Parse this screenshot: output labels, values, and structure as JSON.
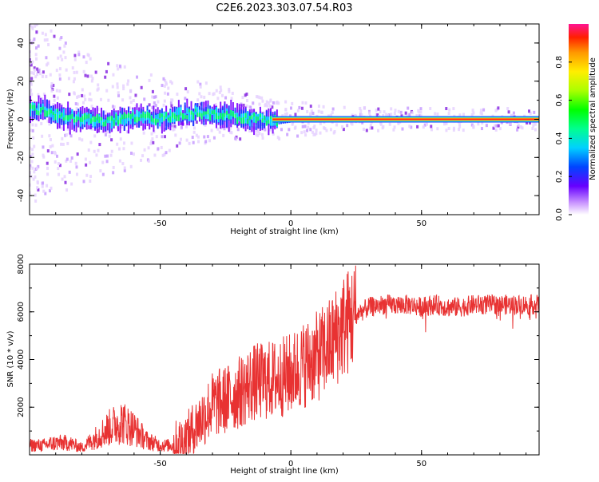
{
  "title": "C2E6.2023.303.07.54.R03",
  "chart_data": [
    {
      "type": "heatmap",
      "xlabel": "Height of straight line (km)",
      "ylabel": "Frequency (Hz)",
      "xlim": [
        -100,
        95
      ],
      "ylim": [
        -50,
        50
      ],
      "xticks": [
        "-50",
        "0",
        "50"
      ],
      "yticks": [
        "-40",
        "-20",
        "0",
        "20",
        "40"
      ],
      "colorbar": {
        "label": "Normalized spectral amplitude",
        "range": [
          0,
          1
        ],
        "ticks": [
          "0.0",
          "0.2",
          "0.4",
          "0.6",
          "0.8"
        ]
      },
      "center_track": [
        {
          "x": -95,
          "y": 5
        },
        {
          "x": -85,
          "y": 1
        },
        {
          "x": -70,
          "y": -1
        },
        {
          "x": -60,
          "y": 1
        },
        {
          "x": -50,
          "y": 0
        },
        {
          "x": -45,
          "y": 2
        },
        {
          "x": -40,
          "y": 3
        },
        {
          "x": -30,
          "y": 3
        },
        {
          "x": -20,
          "y": 1
        },
        {
          "x": -10,
          "y": 0
        },
        {
          "x": -5,
          "y": -1
        },
        {
          "x": 0,
          "y": 0
        },
        {
          "x": 95,
          "y": 0
        }
      ]
    },
    {
      "type": "line",
      "xlabel": "Height of straight line (km)",
      "ylabel": "SNR (10 * v/v)",
      "xlim": [
        -100,
        95
      ],
      "ylim": [
        0,
        8000
      ],
      "xticks": [
        "-50",
        "0",
        "50"
      ],
      "yticks": [
        "2000",
        "4000",
        "6000",
        "8000"
      ],
      "color": "#e83232",
      "series": [
        {
          "x": [
            -100,
            -95,
            -90,
            -85,
            -80,
            -75,
            -70,
            -65,
            -60,
            -55,
            -50,
            -45,
            -40,
            -35,
            -30,
            -25,
            -20,
            -15,
            -10,
            -5,
            0,
            5,
            10,
            15,
            20,
            25,
            30,
            35,
            40,
            45,
            50,
            55,
            60,
            65,
            70,
            75,
            80,
            85,
            90,
            95
          ],
          "y": [
            400,
            400,
            500,
            500,
            300,
            700,
            1100,
            1400,
            1100,
            600,
            400,
            400,
            700,
            1400,
            2100,
            2300,
            2600,
            3000,
            3100,
            3200,
            3400,
            3800,
            4100,
            4600,
            5400,
            5900,
            6200,
            6300,
            6300,
            6300,
            6200,
            6300,
            6200,
            6200,
            6300,
            6300,
            6300,
            6300,
            6300,
            6300
          ]
        }
      ]
    }
  ]
}
